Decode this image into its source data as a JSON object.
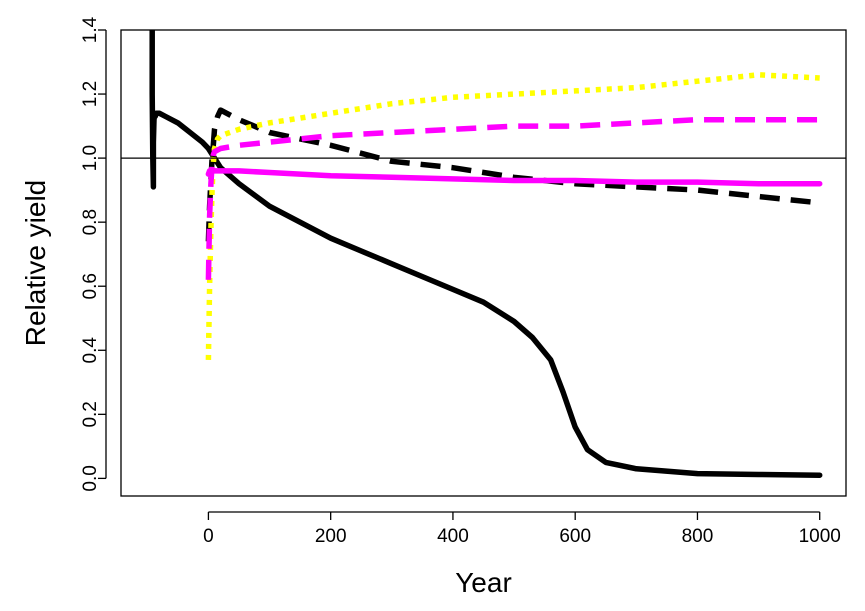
{
  "chart_data": {
    "type": "line",
    "title": "",
    "xlabel": "Year",
    "ylabel": "Relative yield",
    "xlim": [
      -143,
      1043
    ],
    "ylim": [
      -0.055,
      1.4
    ],
    "xticks": [
      0,
      200,
      400,
      600,
      800,
      1000
    ],
    "xtick_labels": [
      "0",
      "200",
      "400",
      "600",
      "800",
      "1000"
    ],
    "yticks": [
      0.0,
      0.2,
      0.4,
      0.6,
      0.8,
      1.0,
      1.2,
      1.4
    ],
    "ytick_labels": [
      "0.0",
      "0.2",
      "0.4",
      "0.6",
      "0.8",
      "1.0",
      "1.2",
      "1.4"
    ],
    "reference_line": 1.0,
    "grid": false,
    "legend": "none",
    "series": [
      {
        "color": "#000000",
        "style": "solid",
        "x": [
          -92,
          -92,
          -91,
          -90,
          -90,
          -89,
          -88,
          -87,
          -85,
          -80,
          -70,
          -50,
          -30,
          -10,
          0,
          20,
          50,
          100,
          150,
          200,
          250,
          300,
          350,
          400,
          450,
          500,
          530,
          560,
          580,
          600,
          620,
          650,
          700,
          800,
          900,
          1000
        ],
        "y": [
          1.42,
          1.2,
          1.0,
          0.91,
          1.05,
          1.12,
          1.14,
          1.13,
          1.14,
          1.14,
          1.13,
          1.11,
          1.08,
          1.05,
          1.03,
          0.97,
          0.92,
          0.85,
          0.8,
          0.75,
          0.71,
          0.67,
          0.63,
          0.59,
          0.55,
          0.49,
          0.44,
          0.37,
          0.27,
          0.16,
          0.09,
          0.05,
          0.03,
          0.015,
          0.012,
          0.01
        ]
      },
      {
        "color": "#000000",
        "style": "dashed",
        "x": [
          0,
          2,
          4,
          6,
          8,
          10,
          15,
          20,
          50,
          100,
          150,
          200,
          300,
          400,
          500,
          600,
          700,
          800,
          900,
          1000
        ],
        "y": [
          0.74,
          0.85,
          0.93,
          1.0,
          1.04,
          1.09,
          1.13,
          1.15,
          1.12,
          1.08,
          1.06,
          1.04,
          0.99,
          0.97,
          0.94,
          0.92,
          0.91,
          0.9,
          0.88,
          0.86
        ]
      },
      {
        "color": "#ffff00",
        "style": "dotted",
        "x": [
          0,
          2,
          4,
          6,
          8,
          10,
          15,
          20,
          50,
          100,
          200,
          300,
          400,
          500,
          600,
          700,
          800,
          900,
          1000
        ],
        "y": [
          0.37,
          0.6,
          0.78,
          0.9,
          0.98,
          1.03,
          1.06,
          1.07,
          1.09,
          1.11,
          1.14,
          1.17,
          1.19,
          1.2,
          1.21,
          1.22,
          1.24,
          1.26,
          1.25
        ]
      },
      {
        "color": "#ff00ff",
        "style": "dashed",
        "x": [
          0,
          2,
          4,
          6,
          8,
          10,
          20,
          50,
          100,
          200,
          300,
          400,
          500,
          600,
          700,
          800,
          900,
          1000
        ],
        "y": [
          0.62,
          0.82,
          0.92,
          0.98,
          1.01,
          1.02,
          1.03,
          1.04,
          1.05,
          1.07,
          1.08,
          1.09,
          1.1,
          1.1,
          1.11,
          1.12,
          1.12,
          1.12
        ]
      },
      {
        "color": "#ff00ff",
        "style": "solid",
        "x": [
          0,
          2,
          4,
          6,
          8,
          10,
          20,
          50,
          100,
          200,
          300,
          400,
          500,
          600,
          700,
          800,
          900,
          1000
        ],
        "y": [
          0.95,
          0.96,
          0.96,
          0.96,
          0.96,
          0.96,
          0.96,
          0.96,
          0.955,
          0.945,
          0.94,
          0.935,
          0.93,
          0.93,
          0.925,
          0.925,
          0.92,
          0.92
        ]
      }
    ]
  }
}
